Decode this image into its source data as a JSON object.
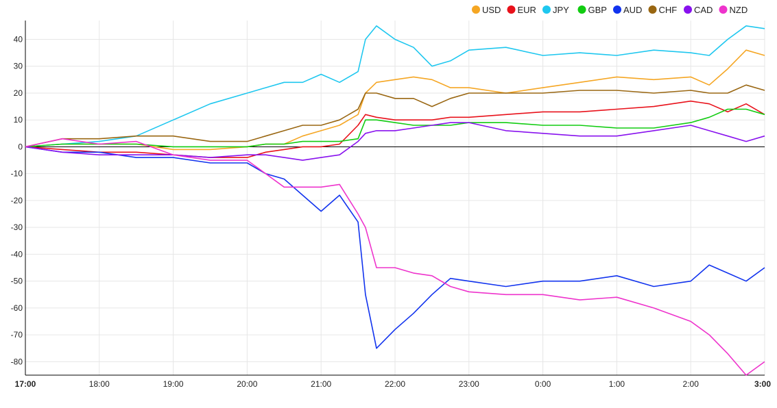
{
  "chart_data": {
    "type": "line",
    "title": "",
    "xlabel": "",
    "ylabel": "",
    "ylim": [
      -85,
      47
    ],
    "xlim": [
      0,
      10
    ],
    "yticks": [
      40,
      30,
      20,
      10,
      0,
      -10,
      -20,
      -30,
      -40,
      -50,
      -60,
      -70,
      -80
    ],
    "grid": true,
    "legend_position": "top-right",
    "x_tick_labels": [
      {
        "label": "17:00",
        "x": 0,
        "bold": true
      },
      {
        "label": "18:00",
        "x": 1,
        "bold": false
      },
      {
        "label": "19:00",
        "x": 2,
        "bold": false
      },
      {
        "label": "20:00",
        "x": 3,
        "bold": false
      },
      {
        "label": "21:00",
        "x": 4,
        "bold": false
      },
      {
        "label": "22:00",
        "x": 5,
        "bold": false
      },
      {
        "label": "23:00",
        "x": 6,
        "bold": false
      },
      {
        "label": "0:00",
        "x": 7,
        "bold": false
      },
      {
        "label": "1:00",
        "x": 8,
        "bold": false
      },
      {
        "label": "2:00",
        "x": 9,
        "bold": false
      },
      {
        "label": "3:00",
        "x": 10,
        "bold": true
      }
    ],
    "x": [
      0,
      0.5,
      1,
      1.5,
      2,
      2.5,
      3,
      3.25,
      3.5,
      3.75,
      4,
      4.25,
      4.5,
      4.6,
      4.75,
      5,
      5.25,
      5.5,
      5.75,
      6,
      6.5,
      7,
      7.5,
      8,
      8.5,
      9,
      9.25,
      9.5,
      9.75,
      10
    ],
    "series": [
      {
        "name": "USD",
        "color": "#f5a623",
        "values": [
          0,
          1,
          1,
          1,
          -1,
          -1,
          0,
          1,
          1,
          4,
          6,
          8,
          12,
          20,
          24,
          25,
          26,
          25,
          22,
          22,
          20,
          22,
          24,
          26,
          25,
          26,
          23,
          29,
          36,
          34
        ]
      },
      {
        "name": "EUR",
        "color": "#e8111a",
        "values": [
          0,
          -1,
          -2,
          -2,
          -3,
          -4,
          -4,
          -2,
          -1,
          0,
          0,
          1,
          8,
          12,
          11,
          10,
          10,
          10,
          11,
          11,
          12,
          13,
          13,
          14,
          15,
          17,
          16,
          13,
          16,
          12
        ]
      },
      {
        "name": "JPY",
        "color": "#1ec7ef",
        "values": [
          0,
          1,
          2,
          4,
          10,
          16,
          20,
          22,
          24,
          24,
          27,
          24,
          28,
          40,
          45,
          40,
          37,
          30,
          32,
          36,
          37,
          34,
          35,
          34,
          36,
          35,
          34,
          40,
          45,
          44
        ]
      },
      {
        "name": "GBP",
        "color": "#11cc11",
        "values": [
          0,
          1,
          1,
          1,
          0,
          0,
          0,
          1,
          1,
          2,
          2,
          2,
          3,
          10,
          10,
          9,
          8,
          8,
          8,
          9,
          9,
          8,
          8,
          7,
          7,
          9,
          11,
          14,
          14,
          12
        ]
      },
      {
        "name": "AUD",
        "color": "#1133ee",
        "values": [
          0,
          -2,
          -2,
          -4,
          -4,
          -6,
          -6,
          -10,
          -12,
          -18,
          -24,
          -18,
          -28,
          -55,
          -75,
          -68,
          -62,
          -55,
          -49,
          -50,
          -52,
          -50,
          -50,
          -48,
          -52,
          -50,
          -44,
          -47,
          -50,
          -45
        ]
      },
      {
        "name": "CHF",
        "color": "#996611",
        "values": [
          0,
          3,
          3,
          4,
          4,
          2,
          2,
          4,
          6,
          8,
          8,
          10,
          14,
          20,
          20,
          18,
          18,
          15,
          18,
          20,
          20,
          20,
          21,
          21,
          20,
          21,
          20,
          20,
          23,
          21
        ]
      },
      {
        "name": "CAD",
        "color": "#8811ee",
        "values": [
          0,
          -2,
          -3,
          -3,
          -3,
          -4,
          -3,
          -3,
          -4,
          -5,
          -4,
          -3,
          2,
          5,
          6,
          6,
          7,
          8,
          9,
          9,
          6,
          5,
          4,
          4,
          6,
          8,
          6,
          4,
          2,
          4
        ]
      },
      {
        "name": "NZD",
        "color": "#ee33cc",
        "values": [
          0,
          3,
          1,
          2,
          -3,
          -5,
          -5,
          -10,
          -15,
          -15,
          -15,
          -14,
          -25,
          -30,
          -45,
          -45,
          -47,
          -48,
          -52,
          -54,
          -55,
          -55,
          -57,
          -56,
          -60,
          -65,
          -70,
          -77,
          -85,
          -80
        ]
      }
    ]
  }
}
